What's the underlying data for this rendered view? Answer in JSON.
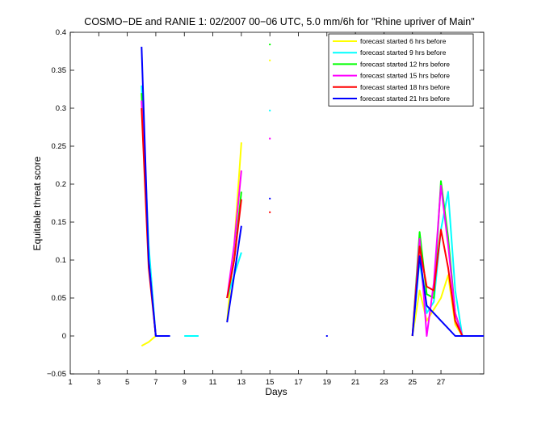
{
  "chart_data": {
    "type": "line",
    "title": "COSMO−DE and RANIE 1: 02/2007 00−06 UTC, 5.0 mm/6h for \"Rhine upriver of Main\"",
    "xlabel": "Days",
    "ylabel": "Equitable threat score",
    "xlim": [
      1,
      30
    ],
    "ylim": [
      -0.05,
      0.4
    ],
    "xticks": [
      "1",
      "3",
      "5",
      "7",
      "9",
      "11",
      "13",
      "15",
      "17",
      "19",
      "21",
      "23",
      "25",
      "27"
    ],
    "xtick_values": [
      1,
      3,
      5,
      7,
      9,
      11,
      13,
      15,
      17,
      19,
      21,
      23,
      25,
      27
    ],
    "yticks": [
      "−0.05",
      "0",
      "0.05",
      "0.1",
      "0.15",
      "0.2",
      "0.25",
      "0.3",
      "0.35",
      "0.4"
    ],
    "ytick_values": [
      -0.05,
      0,
      0.05,
      0.1,
      0.15,
      0.2,
      0.25,
      0.3,
      0.35,
      0.4
    ],
    "grid": false,
    "legend_position": "top-right",
    "series": [
      {
        "name": "forecast started 6 hrs before",
        "color": "#ffff00",
        "segments": [
          [
            [
              6,
              -0.013
            ],
            [
              6.5,
              -0.008
            ],
            [
              7,
              0
            ]
          ],
          [
            [
              12,
              0.02
            ],
            [
              12.5,
              0.12
            ],
            [
              13,
              0.255
            ]
          ],
          [
            [
              25,
              0
            ],
            [
              25.5,
              0.06
            ],
            [
              26,
              0.02
            ],
            [
              26.5,
              0.035
            ],
            [
              27,
              0.05
            ],
            [
              27.5,
              0.08
            ],
            [
              28,
              0.015
            ],
            [
              28.5,
              0
            ]
          ]
        ],
        "points": [
          [
            15,
            0.363
          ]
        ]
      },
      {
        "name": "forecast started 9 hrs before",
        "color": "#00ffff",
        "segments": [
          [
            [
              6,
              0.33
            ],
            [
              6.5,
              0.12
            ],
            [
              7,
              0
            ],
            [
              7.5,
              0
            ],
            [
              8,
              0
            ]
          ],
          [
            [
              9,
              0
            ],
            [
              9.5,
              0
            ],
            [
              10,
              0
            ]
          ],
          [
            [
              12,
              0.05
            ],
            [
              12.5,
              0.08
            ],
            [
              13,
              0.11
            ]
          ],
          [
            [
              25,
              0
            ],
            [
              25.5,
              0.1
            ],
            [
              26,
              0.03
            ],
            [
              26.5,
              0.045
            ],
            [
              27,
              0.14
            ],
            [
              27.5,
              0.19
            ],
            [
              28,
              0.06
            ],
            [
              28.5,
              0
            ]
          ]
        ],
        "points": [
          [
            15,
            0.297
          ]
        ]
      },
      {
        "name": "forecast started 12 hrs before",
        "color": "#00ff00",
        "segments": [
          [
            [
              6,
              0.32
            ],
            [
              6.5,
              0.1
            ],
            [
              7,
              0
            ]
          ],
          [
            [
              12,
              0.05
            ],
            [
              12.5,
              0.1
            ],
            [
              13,
              0.19
            ]
          ],
          [
            [
              25,
              0
            ],
            [
              25.5,
              0.137
            ],
            [
              26,
              0.055
            ],
            [
              26.5,
              0.05
            ],
            [
              27,
              0.204
            ],
            [
              27.5,
              0.13
            ],
            [
              28,
              0.03
            ],
            [
              28.5,
              0
            ]
          ]
        ],
        "points": [
          [
            15,
            0.384
          ]
        ]
      },
      {
        "name": "forecast started 15 hrs before",
        "color": "#ff00ff",
        "segments": [
          [
            [
              6,
              0.31
            ],
            [
              6.5,
              0.1
            ],
            [
              7,
              0
            ]
          ],
          [
            [
              12,
              0.05
            ],
            [
              12.5,
              0.12
            ],
            [
              13,
              0.218
            ]
          ],
          [
            [
              25,
              0
            ],
            [
              25.5,
              0.128
            ],
            [
              26,
              0.0
            ],
            [
              26.5,
              0.07
            ],
            [
              27,
              0.198
            ],
            [
              27.5,
              0.12
            ],
            [
              28,
              0.03
            ],
            [
              28.5,
              0
            ]
          ]
        ],
        "points": [
          [
            15,
            0.26
          ]
        ]
      },
      {
        "name": "forecast started 18 hrs before",
        "color": "#ff0000",
        "segments": [
          [
            [
              6,
              0.3
            ],
            [
              6.5,
              0.09
            ],
            [
              7,
              0
            ]
          ],
          [
            [
              12,
              0.05
            ],
            [
              12.5,
              0.1
            ],
            [
              13,
              0.18
            ]
          ],
          [
            [
              25,
              0
            ],
            [
              25.5,
              0.118
            ],
            [
              26,
              0.065
            ],
            [
              26.5,
              0.06
            ],
            [
              27,
              0.14
            ],
            [
              27.5,
              0.09
            ],
            [
              28,
              0.02
            ],
            [
              28.5,
              0
            ]
          ]
        ],
        "points": [
          [
            15,
            0.163
          ]
        ]
      },
      {
        "name": "forecast started 21 hrs before",
        "color": "#0000ff",
        "segments": [
          [
            [
              6,
              0.381
            ],
            [
              6.5,
              0.1
            ],
            [
              7,
              0
            ],
            [
              7.5,
              0
            ],
            [
              8,
              0
            ]
          ],
          [
            [
              12,
              0.018
            ],
            [
              12.5,
              0.08
            ],
            [
              13,
              0.145
            ]
          ],
          [
            [
              25,
              0
            ],
            [
              25.5,
              0.105
            ],
            [
              26,
              0.04
            ],
            [
              26.5,
              0.03
            ],
            [
              27,
              0.02
            ],
            [
              27.5,
              0.01
            ],
            [
              28,
              0
            ],
            [
              28.5,
              0
            ],
            [
              29,
              0
            ],
            [
              29.5,
              0
            ],
            [
              30,
              0
            ]
          ]
        ],
        "points": [
          [
            15,
            0.181
          ]
        ]
      }
    ],
    "extra_points": [
      {
        "x": 19,
        "y": 0,
        "color": "#0000ff"
      }
    ]
  }
}
